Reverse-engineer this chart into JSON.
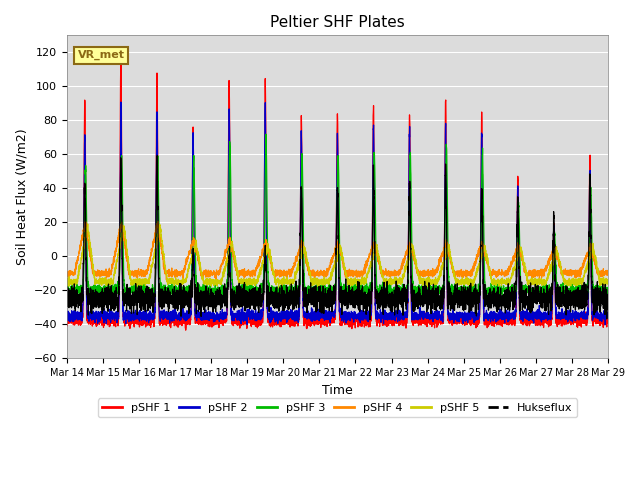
{
  "title": "Peltier SHF Plates",
  "xlabel": "Time",
  "ylabel": "Soil Heat Flux (W/m2)",
  "ylim": [
    -60,
    130
  ],
  "yticks": [
    -60,
    -40,
    -20,
    0,
    20,
    40,
    60,
    80,
    100,
    120
  ],
  "xlim": [
    0,
    15
  ],
  "xtick_labels": [
    "Mar 14",
    "Mar 15",
    "Mar 16",
    "Mar 17",
    "Mar 18",
    "Mar 19",
    "Mar 20",
    "Mar 21",
    "Mar 22",
    "Mar 23",
    "Mar 24",
    "Mar 25",
    "Mar 26",
    "Mar 27",
    "Mar 28",
    "Mar 29"
  ],
  "annotation_text": "VR_met",
  "annotation_bg": "#FFFF99",
  "annotation_border": "#8B6914",
  "series_colors": {
    "pSHF 1": "#FF0000",
    "pSHF 2": "#0000CC",
    "pSHF 3": "#00BB00",
    "pSHF 4": "#FF8800",
    "pSHF 5": "#CCCC00",
    "Hukseflux": "#000000"
  },
  "bg_color": "#DCDCDC",
  "legend_entries": [
    "pSHF 1",
    "pSHF 2",
    "pSHF 3",
    "pSHF 4",
    "pSHF 5",
    "Hukseflux"
  ],
  "peaks1": [
    93,
    118,
    108,
    75,
    103,
    105,
    84,
    85,
    88,
    84,
    93,
    84,
    45,
    20,
    60
  ],
  "peaks2": [
    70,
    90,
    85,
    72,
    87,
    88,
    73,
    73,
    75,
    73,
    78,
    73,
    38,
    18,
    50
  ],
  "peaks3": [
    52,
    60,
    58,
    56,
    68,
    70,
    60,
    60,
    62,
    60,
    65,
    60,
    30,
    12,
    40
  ],
  "peaks4": [
    20,
    20,
    20,
    10,
    10,
    8,
    8,
    8,
    8,
    8,
    8,
    8,
    6,
    5,
    6
  ],
  "peaks5": [
    18,
    18,
    18,
    8,
    8,
    6,
    6,
    6,
    6,
    6,
    6,
    6,
    5,
    4,
    5
  ],
  "peaks_huk": [
    44,
    57,
    57,
    0,
    0,
    0,
    40,
    42,
    44,
    42,
    50,
    42,
    30,
    18,
    45
  ],
  "trough1": -38,
  "trough2": -35,
  "trough3": -20,
  "trough4": -10,
  "trough5": -15,
  "trough_huk": -25,
  "n_days": 15,
  "pts_per_day": 288
}
